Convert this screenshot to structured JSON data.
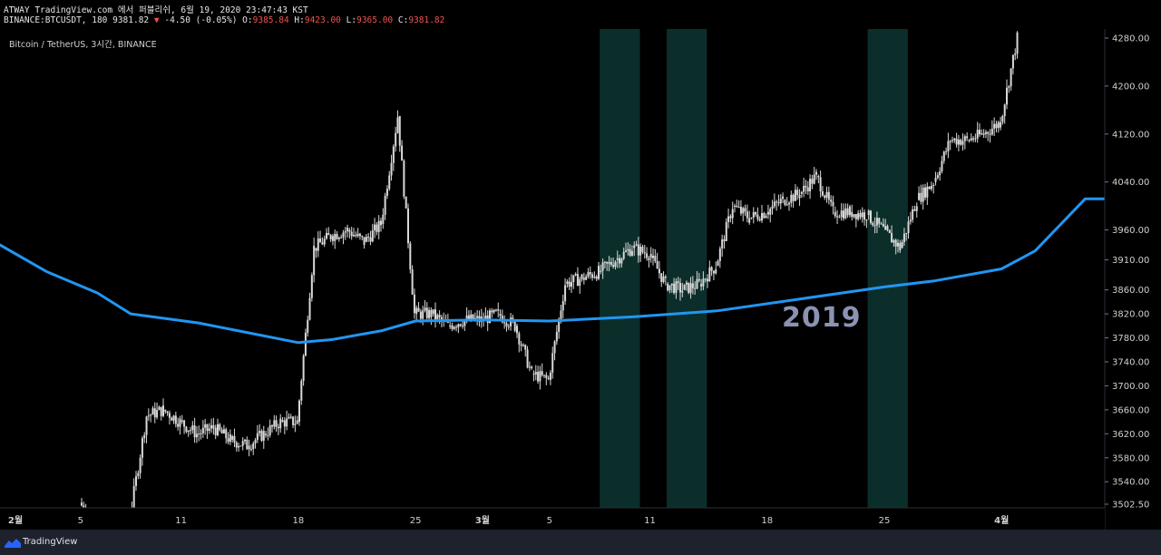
{
  "header": {
    "line1": "ATWAY TradingView.com 에서 퍼블리쉬, 6월 19, 2020 23:47:43 KST",
    "symbol_prefix": "BINANCE:BTCUSDT, 180 9381.82",
    "change_arrow": "▼",
    "change": "-4.50 (-0.05%)",
    "o_label": "O:",
    "o_value": "9385.84",
    "h_label": "H:",
    "h_value": "9423.00",
    "l_label": "L:",
    "l_value": "9365.00",
    "c_label": "C:",
    "c_value": "9381.82"
  },
  "legend": "Bitcoin / TetherUS, 3시간, BINANCE",
  "year_label": "2019",
  "footer": {
    "brand": "TradingView"
  },
  "colors": {
    "background": "#000000",
    "candle": "#d9d9d9",
    "ma_line": "#2196f3",
    "highlight": "#0b2e2a",
    "text": "#d0d0d0",
    "footer_bg": "#1e222d"
  },
  "chart_data": {
    "type": "candlestick",
    "title": "Bitcoin / TetherUS, 3시간, BINANCE",
    "x_ticks": [
      "2월",
      "5",
      "11",
      "18",
      "25",
      "3월",
      "5",
      "11",
      "18",
      "25",
      "4월"
    ],
    "y_ticks": [
      4280,
      4200,
      4120,
      4040,
      3960,
      3910,
      3860,
      3820,
      3780,
      3740,
      3700,
      3660,
      3620,
      3580,
      3540,
      3502.5
    ],
    "y_tick_labels": [
      "4280.00",
      "4200.00",
      "4120.00",
      "4040.00",
      "3960.00",
      "3910.00",
      "3860.00",
      "3820.00",
      "3780.00",
      "3740.00",
      "3700.00",
      "3660.00",
      "3620.00",
      "3580.00",
      "3540.00",
      "3502.50"
    ],
    "ylim": [
      3495,
      4300
    ],
    "x_range": [
      "2019-02-01",
      "2019-04-07"
    ],
    "price_series": {
      "name": "BTCUSDT",
      "points": [
        [
          "2019-02-05",
          3505
        ],
        [
          "2019-02-06",
          3470
        ],
        [
          "2019-02-07",
          3460
        ],
        [
          "2019-02-08",
          3480
        ],
        [
          "2019-02-09",
          3650
        ],
        [
          "2019-02-10",
          3660
        ],
        [
          "2019-02-11",
          3640
        ],
        [
          "2019-02-12",
          3620
        ],
        [
          "2019-02-13",
          3630
        ],
        [
          "2019-02-14",
          3610
        ],
        [
          "2019-02-15",
          3600
        ],
        [
          "2019-02-16",
          3620
        ],
        [
          "2019-02-17",
          3640
        ],
        [
          "2019-02-18",
          3640
        ],
        [
          "2019-02-19",
          3930
        ],
        [
          "2019-02-20",
          3950
        ],
        [
          "2019-02-21",
          3960
        ],
        [
          "2019-02-22",
          3940
        ],
        [
          "2019-02-23",
          3970
        ],
        [
          "2019-02-24",
          4150
        ],
        [
          "2019-02-25",
          3820
        ],
        [
          "2019-02-26",
          3820
        ],
        [
          "2019-02-27",
          3800
        ],
        [
          "2019-02-28",
          3810
        ],
        [
          "2019-03-01",
          3810
        ],
        [
          "2019-03-02",
          3820
        ],
        [
          "2019-03-03",
          3800
        ],
        [
          "2019-03-04",
          3720
        ],
        [
          "2019-03-05",
          3710
        ],
        [
          "2019-03-06",
          3870
        ],
        [
          "2019-03-07",
          3880
        ],
        [
          "2019-03-08",
          3890
        ],
        [
          "2019-03-09",
          3910
        ],
        [
          "2019-03-10",
          3930
        ],
        [
          "2019-03-11",
          3920
        ],
        [
          "2019-03-12",
          3870
        ],
        [
          "2019-03-13",
          3860
        ],
        [
          "2019-03-14",
          3870
        ],
        [
          "2019-03-15",
          3900
        ],
        [
          "2019-03-16",
          4000
        ],
        [
          "2019-03-17",
          3980
        ],
        [
          "2019-03-18",
          3990
        ],
        [
          "2019-03-19",
          4010
        ],
        [
          "2019-03-20",
          4020
        ],
        [
          "2019-03-21",
          4050
        ],
        [
          "2019-03-22",
          3990
        ],
        [
          "2019-03-23",
          3990
        ],
        [
          "2019-03-24",
          3985
        ],
        [
          "2019-03-25",
          3960
        ],
        [
          "2019-03-26",
          3930
        ],
        [
          "2019-03-27",
          4010
        ],
        [
          "2019-03-28",
          4040
        ],
        [
          "2019-03-29",
          4110
        ],
        [
          "2019-03-30",
          4110
        ],
        [
          "2019-03-31",
          4120
        ],
        [
          "2019-04-01",
          4140
        ],
        [
          "2019-04-02",
          4280
        ]
      ]
    },
    "ma_series": {
      "name": "MA",
      "points": [
        [
          "2019-02-01",
          3935
        ],
        [
          "2019-02-03",
          3890
        ],
        [
          "2019-02-06",
          3855
        ],
        [
          "2019-02-08",
          3820
        ],
        [
          "2019-02-12",
          3805
        ],
        [
          "2019-02-18",
          3772
        ],
        [
          "2019-02-20",
          3777
        ],
        [
          "2019-02-23",
          3792
        ],
        [
          "2019-02-25",
          3808
        ],
        [
          "2019-03-01",
          3810
        ],
        [
          "2019-03-05",
          3808
        ],
        [
          "2019-03-10",
          3815
        ],
        [
          "2019-03-15",
          3825
        ],
        [
          "2019-03-20",
          3845
        ],
        [
          "2019-03-25",
          3865
        ],
        [
          "2019-03-28",
          3875
        ],
        [
          "2019-04-01",
          3895
        ],
        [
          "2019-04-03",
          3925
        ],
        [
          "2019-04-06",
          4012
        ]
      ]
    },
    "highlight_ranges": [
      [
        "2019-03-08",
        "2019-03-10"
      ],
      [
        "2019-03-12",
        "2019-03-14"
      ],
      [
        "2019-03-24",
        "2019-03-26"
      ]
    ],
    "grid": false,
    "legend": "top-left"
  }
}
